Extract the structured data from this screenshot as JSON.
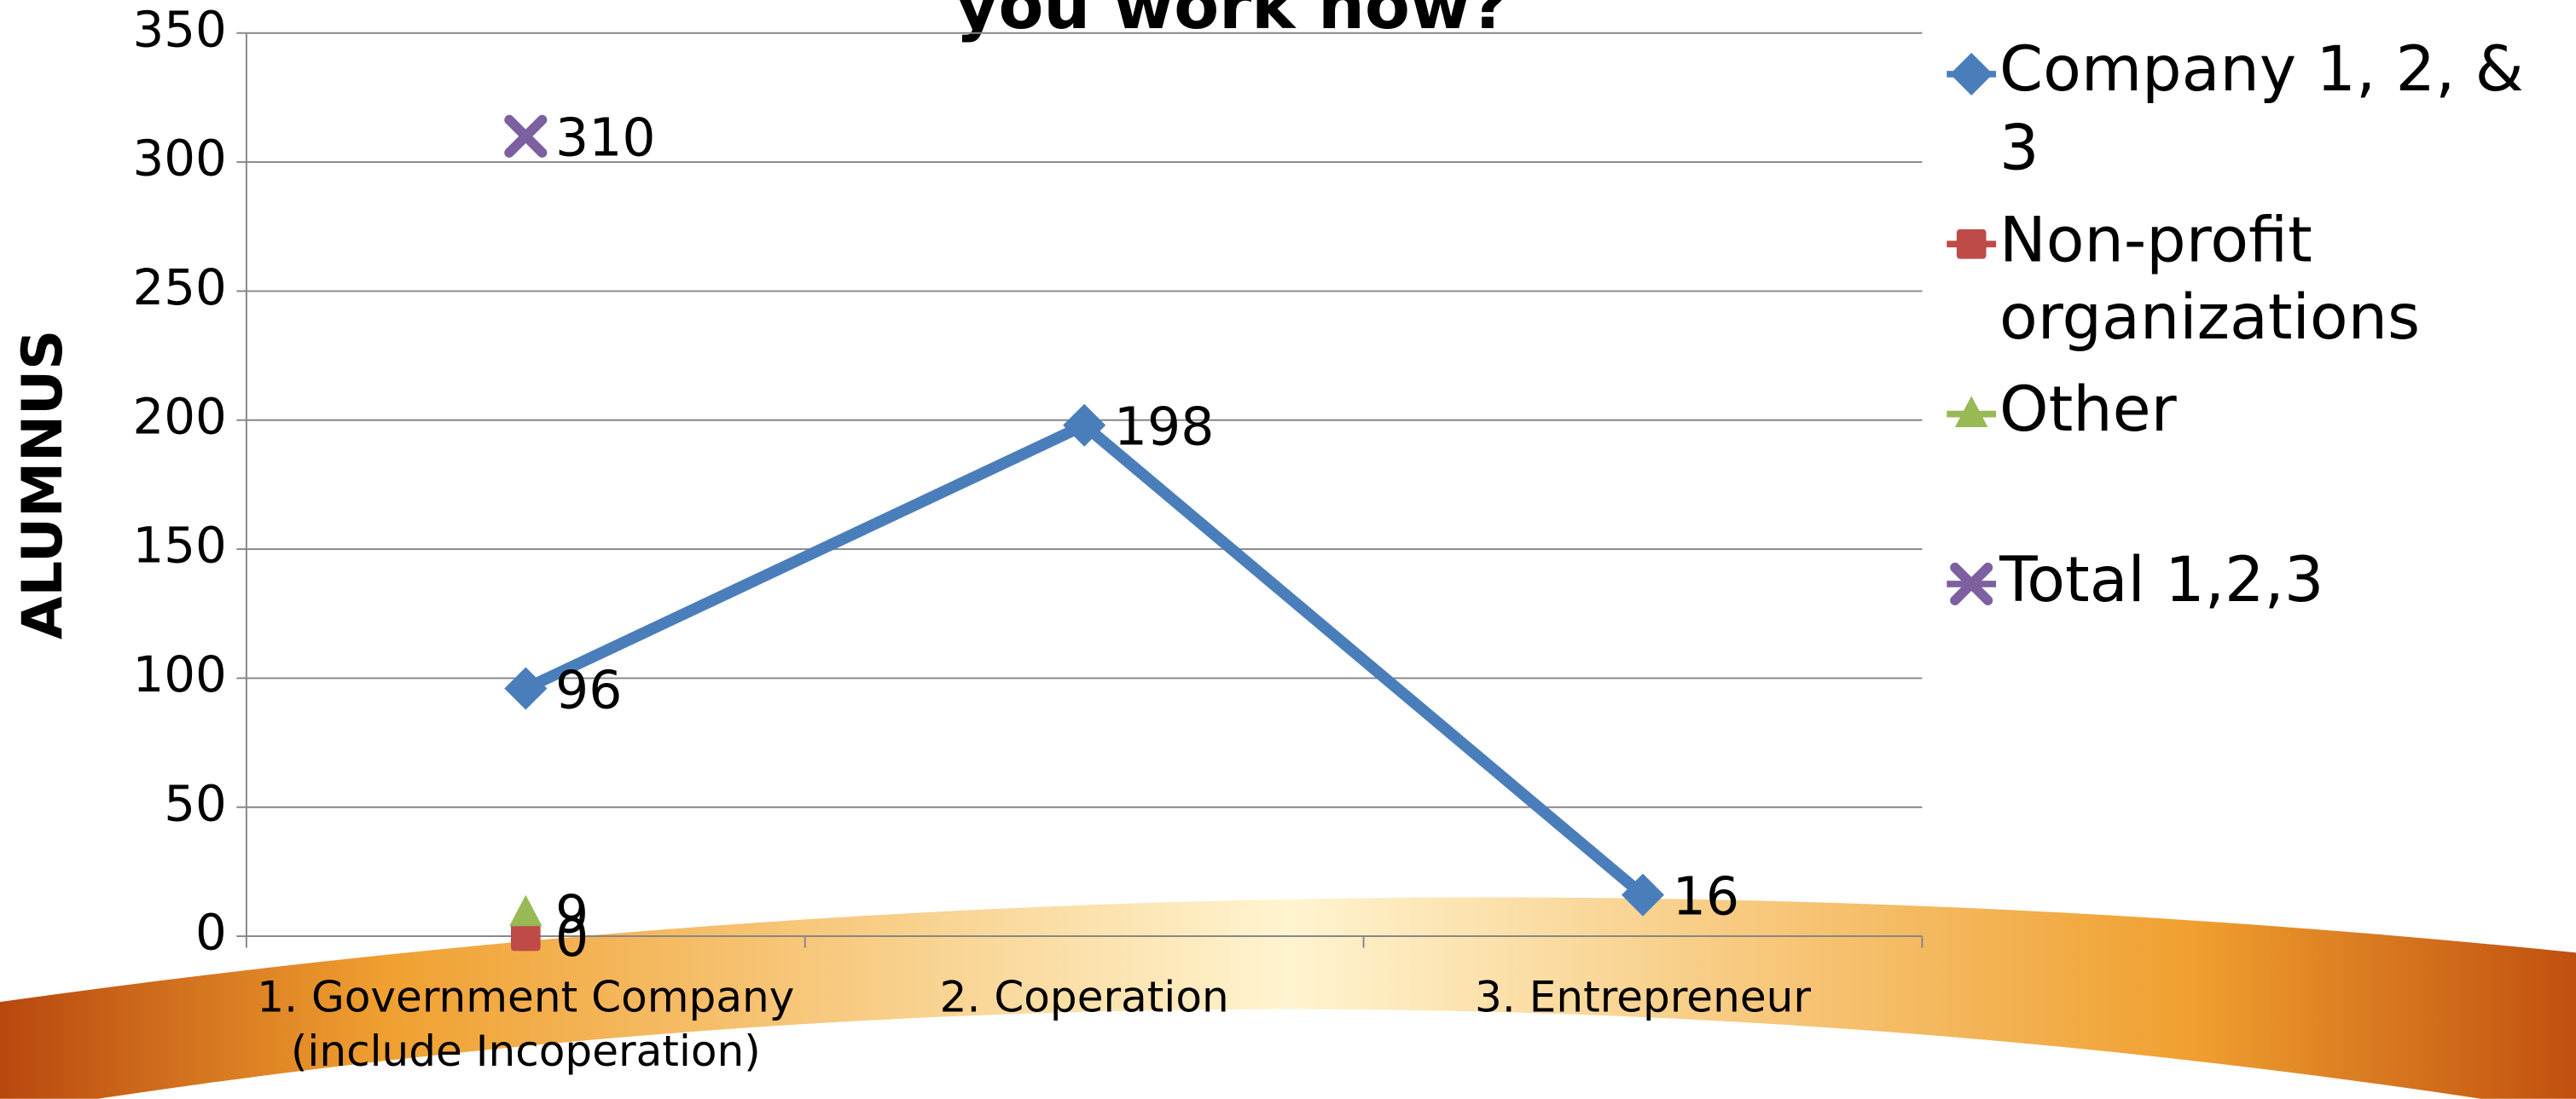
{
  "chart_data": {
    "type": "line",
    "title": "you work now?",
    "ylabel": "ALUMNUS",
    "categories": [
      "1. Government Company (include Incoperation)",
      "2. Coperation",
      "3. Entrepreneur"
    ],
    "series": [
      {
        "name": "Company 1, 2, & 3",
        "color": "#4a7ebb",
        "marker": "diamond",
        "values": [
          96,
          198,
          16
        ]
      },
      {
        "name": "Non-profit organizations",
        "color": "#be4b48",
        "marker": "square",
        "values": [
          0,
          null,
          null
        ]
      },
      {
        "name": "Other",
        "color": "#98b954",
        "marker": "triangle",
        "values": [
          9,
          null,
          null
        ]
      },
      {
        "name": "Total 1,2,3",
        "color": "#7d60a0",
        "marker": "x",
        "values": [
          310,
          null,
          null
        ]
      }
    ],
    "ylim": [
      0,
      350
    ],
    "yticks": [
      0,
      50,
      100,
      150,
      200,
      250,
      300,
      350
    ],
    "grid": true,
    "legend": "right"
  }
}
